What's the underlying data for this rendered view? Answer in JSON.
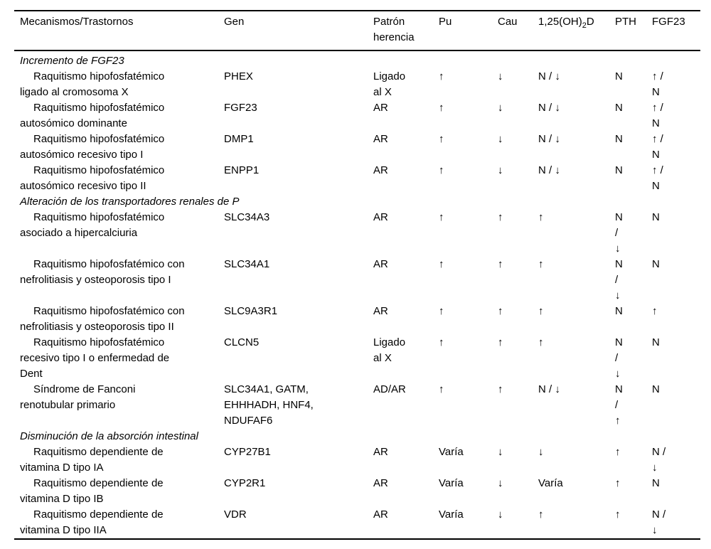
{
  "table": {
    "headers": [
      {
        "label": "Mecanismos/Trastornos"
      },
      {
        "label": "Gen"
      },
      {
        "label": "Patrón herencia"
      },
      {
        "label": "Pu"
      },
      {
        "label": "Cau"
      },
      {
        "prefix": "1,25(OH)",
        "sub": "2",
        "suffix": "D"
      },
      {
        "label": "PTH"
      },
      {
        "label": "FGF23"
      }
    ],
    "sections": [
      {
        "title": "Incremento de FGF23",
        "rows": [
          {
            "cells": [
              "Raquitismo hipofosfatémico\nligado al cromosoma X",
              "PHEX",
              "Ligado\nal X",
              "↑",
              "↓",
              "N / ↓",
              "N",
              "↑ /\nN"
            ]
          },
          {
            "cells": [
              "Raquitismo hipofosfatémico\nautosómico dominante",
              "FGF23",
              "AR",
              "↑",
              "↓",
              "N / ↓",
              "N",
              "↑ /\nN"
            ]
          },
          {
            "cells": [
              "Raquitismo hipofosfatémico\nautosómico recesivo tipo I",
              "DMP1",
              "AR",
              "↑",
              "↓",
              "N / ↓",
              "N",
              "↑ /\nN"
            ]
          },
          {
            "cells": [
              "Raquitismo hipofosfatémico\nautosómico recesivo tipo II",
              "ENPP1",
              "AR",
              "↑",
              "↓",
              "N / ↓",
              "N",
              "↑ /\nN"
            ]
          }
        ]
      },
      {
        "title": "Alteración de los transportadores renales de P",
        "rows": [
          {
            "cells": [
              "Raquitismo hipofosfatémico\nasociado a hipercalciuria",
              "SLC34A3",
              "AR",
              "↑",
              "↑",
              "↑",
              "N\n/\n↓",
              "N"
            ]
          },
          {
            "cells": [
              "Raquitismo hipofosfatémico con\nnefrolitiasis y osteoporosis tipo I",
              "SLC34A1",
              "AR",
              "↑",
              "↑",
              "↑",
              "N\n/\n↓",
              "N"
            ]
          },
          {
            "cells": [
              "Raquitismo hipofosfatémico con\nnefrolitiasis y osteoporosis tipo II",
              "SLC9A3R1",
              "AR",
              "↑",
              "↑",
              "↑",
              "N",
              "↑"
            ]
          },
          {
            "cells": [
              "Raquitismo hipofosfatémico\nrecesivo tipo I o enfermedad de\nDent",
              "CLCN5",
              "Ligado\nal X",
              "↑",
              "↑",
              "↑",
              "N\n/\n↓",
              "N"
            ]
          },
          {
            "cells": [
              "Síndrome de Fanconi\nrenotubular primario",
              "SLC34A1, GATM,\nEHHHADH, HNF4,\nNDUFAF6",
              "AD/AR",
              "↑",
              "↑",
              "N / ↓",
              "N\n/\n↑",
              "N"
            ]
          }
        ]
      },
      {
        "title": "Disminución de la absorción intestinal",
        "rows": [
          {
            "cells": [
              "Raquitismo dependiente de\nvitamina D tipo IA",
              "CYP27B1",
              "AR",
              "Varía",
              "↓",
              "↓",
              "↑",
              "N /\n↓"
            ]
          },
          {
            "cells": [
              "Raquitismo dependiente de\nvitamina D tipo IB",
              "CYP2R1",
              "AR",
              "Varía",
              "↓",
              "Varía",
              "↑",
              "N"
            ]
          },
          {
            "cells": [
              "Raquitismo dependiente de\nvitamina D tipo IIA",
              "VDR",
              "AR",
              "Varía",
              "↓",
              "↑",
              "↑",
              "N /\n↓"
            ]
          }
        ]
      }
    ]
  }
}
